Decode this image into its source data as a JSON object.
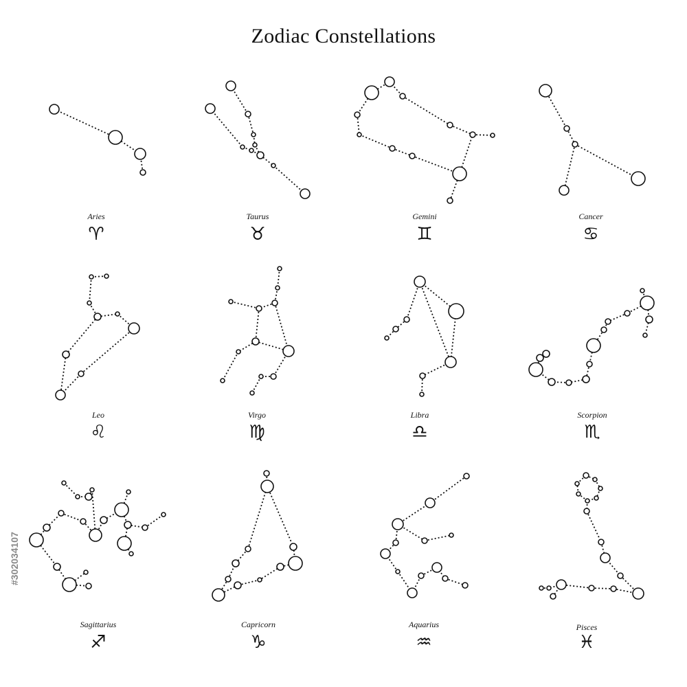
{
  "title": "Zodiac Constellations",
  "side_id": "#302034107",
  "colors": {
    "ink": "#111111",
    "background": "#ffffff"
  },
  "constellations": [
    {
      "name": "Aries",
      "symbol": "♈"
    },
    {
      "name": "Taurus",
      "symbol": "♉"
    },
    {
      "name": "Gemini",
      "symbol": "♊"
    },
    {
      "name": "Cancer",
      "symbol": "♋"
    },
    {
      "name": "Leo",
      "symbol": "♌"
    },
    {
      "name": "Virgo",
      "symbol": "♍"
    },
    {
      "name": "Libra",
      "symbol": "♎"
    },
    {
      "name": "Scorpion",
      "symbol": "♏"
    },
    {
      "name": "Sagittarius",
      "symbol": "♐"
    },
    {
      "name": "Capricorn",
      "symbol": "♑"
    },
    {
      "name": "Aquarius",
      "symbol": "♒"
    },
    {
      "name": "Pisces",
      "symbol": "♓"
    }
  ]
}
